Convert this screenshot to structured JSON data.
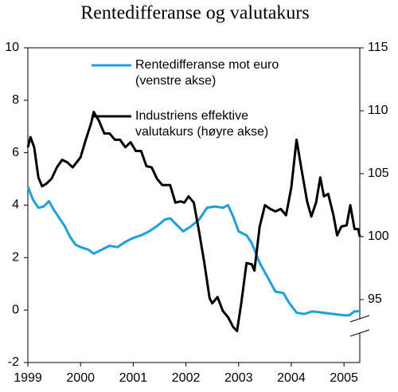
{
  "chart_data": {
    "type": "line",
    "title": "Rentedifferanse og valutakurs",
    "xlim": [
      1999,
      2005.3
    ],
    "xticks": [
      1999,
      2000,
      2001,
      2002,
      2003,
      2004,
      2005
    ],
    "ylim": [
      -2,
      10
    ],
    "yticks": [
      -2,
      0,
      2,
      4,
      6,
      8,
      10
    ],
    "y2lim": [
      90,
      115
    ],
    "y2ticks": [
      95,
      100,
      105,
      110,
      115
    ],
    "series": [
      {
        "name": "Rentedifferanse mot euro (venstre akse)",
        "color": "#1ea0dc",
        "x": [
          1999.0,
          1999.1,
          1999.2,
          1999.3,
          1999.4,
          1999.5,
          1999.6,
          1999.7,
          1999.8,
          1999.9,
          2000.0,
          2000.15,
          2000.25,
          2000.4,
          2000.55,
          2000.7,
          2000.85,
          2001.0,
          2001.15,
          2001.3,
          2001.45,
          2001.6,
          2001.7,
          2001.85,
          2001.95,
          2002.1,
          2002.25,
          2002.4,
          2002.55,
          2002.7,
          2002.8,
          2002.9,
          2003.0,
          2003.15,
          2003.25,
          2003.4,
          2003.55,
          2003.7,
          2003.85,
          2003.95,
          2004.1,
          2004.25,
          2004.4,
          2004.6,
          2004.8,
          2005.0,
          2005.1,
          2005.2,
          2005.3
        ],
        "values": [
          4.7,
          4.2,
          3.9,
          3.95,
          4.15,
          3.8,
          3.5,
          3.2,
          2.8,
          2.5,
          2.4,
          2.3,
          2.15,
          2.3,
          2.45,
          2.4,
          2.6,
          2.75,
          2.85,
          3.0,
          3.2,
          3.45,
          3.5,
          3.2,
          3.0,
          3.2,
          3.45,
          3.9,
          3.95,
          3.9,
          4.0,
          3.55,
          3.0,
          2.85,
          2.55,
          1.8,
          1.25,
          0.7,
          0.65,
          0.3,
          -0.1,
          -0.15,
          -0.05,
          -0.1,
          -0.15,
          -0.2,
          -0.2,
          -0.05,
          -0.05
        ]
      },
      {
        "name": "Industriens effektive valutakurs (høyre akse)",
        "color": "#000000",
        "axis": "y2",
        "x": [
          1999.0,
          1999.05,
          1999.12,
          1999.2,
          1999.27,
          1999.35,
          1999.45,
          1999.55,
          1999.65,
          1999.75,
          1999.85,
          2000.0,
          2000.1,
          2000.2,
          2000.25,
          2000.35,
          2000.45,
          2000.55,
          2000.65,
          2000.75,
          2000.85,
          2000.95,
          2001.05,
          2001.15,
          2001.25,
          2001.35,
          2001.45,
          2001.55,
          2001.7,
          2001.8,
          2001.9,
          2001.97,
          2002.05,
          2002.15,
          2002.25,
          2002.35,
          2002.45,
          2002.5,
          2002.6,
          2002.7,
          2002.8,
          2002.9,
          2002.97,
          2003.05,
          2003.15,
          2003.25,
          2003.3,
          2003.4,
          2003.5,
          2003.6,
          2003.7,
          2003.8,
          2003.9,
          2004.0,
          2004.1,
          2004.2,
          2004.3,
          2004.38,
          2004.47,
          2004.55,
          2004.62,
          2004.7,
          2004.8,
          2004.87,
          2004.95,
          2005.05,
          2005.12,
          2005.2,
          2005.27,
          2005.3
        ],
        "values": [
          107.1,
          107.9,
          107.1,
          104.7,
          104.0,
          104.2,
          104.6,
          105.5,
          106.1,
          105.9,
          105.5,
          106.3,
          107.7,
          109.0,
          109.9,
          109.2,
          108.2,
          108.2,
          107.7,
          107.7,
          107.1,
          107.5,
          106.8,
          106.8,
          105.6,
          105.5,
          104.6,
          104.1,
          104.1,
          102.7,
          102.8,
          102.7,
          103.2,
          102.7,
          100.4,
          97.9,
          95.1,
          94.7,
          95.2,
          94.1,
          93.6,
          92.8,
          92.5,
          94.7,
          97.9,
          97.8,
          97.3,
          100.8,
          102.5,
          102.2,
          102.0,
          102.2,
          101.7,
          103.9,
          107.7,
          105.2,
          102.8,
          101.6,
          102.7,
          104.7,
          103.2,
          103.4,
          101.7,
          100.1,
          100.8,
          100.9,
          102.5,
          100.6,
          100.6,
          100.0
        ]
      }
    ]
  }
}
